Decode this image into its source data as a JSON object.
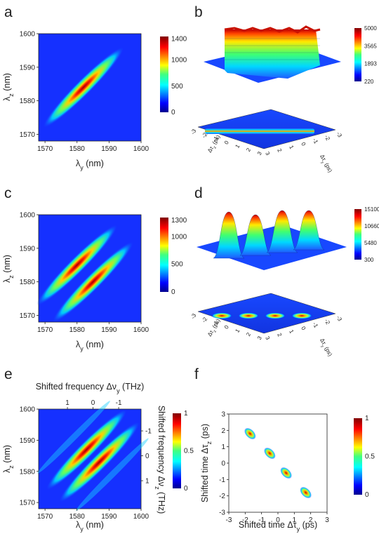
{
  "chart_data": [
    {
      "panel": "a",
      "type": "heatmap",
      "xlabel_main": "λ",
      "xlabel_sub": "y",
      "xlabel_unit": " (nm)",
      "ylabel_main": "λ",
      "ylabel_sub": "z",
      "ylabel_unit": " (nm)",
      "xlim": [
        1568,
        1600
      ],
      "ylim": [
        1568,
        1600
      ],
      "xticks": [
        "1570",
        "1580",
        "1590",
        "1600"
      ],
      "yticks": [
        "1570",
        "1580",
        "1590",
        "1600"
      ],
      "xtick_values": [
        1570,
        1580,
        1590,
        1600
      ],
      "ytick_values": [
        1570,
        1580,
        1590,
        1600
      ],
      "colorbar_ticks": [
        "1400",
        "1000",
        "500",
        "0"
      ],
      "colorbar_values": [
        1400,
        1000,
        500,
        0
      ],
      "colorbar_range": [
        0,
        1450
      ],
      "ellipses": [
        {
          "cx": 1582,
          "cy": 1584,
          "peak": 1400
        }
      ]
    },
    {
      "panel": "b",
      "type": "surface",
      "colorbar_ticks": [
        "5000",
        "3565",
        "1893",
        "220"
      ],
      "x_axis_label": "Δτ",
      "x_axis_sub": "z",
      "x_axis_unit": " (ps)",
      "y_axis_label": "Δτ",
      "y_axis_sub": "y",
      "y_axis_unit": " (ps)",
      "axis_ticks": [
        "-3",
        "-2",
        "-1",
        "0",
        "1",
        "2",
        "3"
      ],
      "peaks": 1
    },
    {
      "panel": "c",
      "type": "heatmap",
      "xlabel_main": "λ",
      "xlabel_sub": "y",
      "xlabel_unit": " (nm)",
      "ylabel_main": "λ",
      "ylabel_sub": "z",
      "ylabel_unit": " (nm)",
      "xlim": [
        1568,
        1600
      ],
      "ylim": [
        1568,
        1600
      ],
      "xticks": [
        "1570",
        "1580",
        "1590",
        "1600"
      ],
      "yticks": [
        "1570",
        "1580",
        "1590",
        "1600"
      ],
      "xtick_values": [
        1570,
        1580,
        1590,
        1600
      ],
      "ytick_values": [
        1570,
        1580,
        1590,
        1600
      ],
      "colorbar_ticks": [
        "1300",
        "1000",
        "500",
        "0"
      ],
      "colorbar_values": [
        1300,
        1000,
        500,
        0
      ],
      "colorbar_range": [
        0,
        1350
      ],
      "ellipses": [
        {
          "cx": 1580,
          "cy": 1585,
          "peak": 1300
        },
        {
          "cx": 1585,
          "cy": 1580,
          "peak": 1300
        }
      ]
    },
    {
      "panel": "d",
      "type": "surface",
      "colorbar_ticks": [
        "15100",
        "10660",
        "5480",
        "300"
      ],
      "x_axis_label": "Δτ",
      "x_axis_sub": "z",
      "x_axis_unit": " (ps)",
      "y_axis_label": "Δτ",
      "y_axis_sub": "y",
      "y_axis_unit": " (ps)",
      "axis_ticks": [
        "-3",
        "-2",
        "-1",
        "0",
        "1",
        "2",
        "3"
      ],
      "peaks": 4
    },
    {
      "panel": "e",
      "type": "heatmap",
      "xlabel_main": "λ",
      "xlabel_sub": "y",
      "xlabel_unit": " (nm)",
      "ylabel_main": "λ",
      "ylabel_sub": "z",
      "ylabel_unit": " (nm)",
      "top_label": "Shifted frequency Δν",
      "top_sub": "y",
      "top_unit": " (THz)",
      "right_label": "Shifted frequency Δν",
      "right_sub": "z",
      "right_unit": " (THz)",
      "top_ticks": [
        "1",
        "0",
        "-1"
      ],
      "top_tick_values": [
        1577,
        1585,
        1593
      ],
      "right_ticks": [
        "-1",
        "0",
        "1"
      ],
      "right_tick_values": [
        1593,
        1585,
        1577
      ],
      "xlim": [
        1568,
        1600
      ],
      "ylim": [
        1568,
        1600
      ],
      "xticks": [
        "1570",
        "1580",
        "1590",
        "1600"
      ],
      "yticks": [
        "1570",
        "1580",
        "1590",
        "1600"
      ],
      "xtick_values": [
        1570,
        1580,
        1590,
        1600
      ],
      "ytick_values": [
        1570,
        1580,
        1590,
        1600
      ],
      "colorbar_ticks": [
        "1",
        "0.5",
        "0"
      ],
      "colorbar_values": [
        1,
        0.5,
        0
      ],
      "colorbar_range": [
        0,
        1
      ],
      "ellipses": [
        {
          "cx": 1583,
          "cy": 1587,
          "peak": 1
        },
        {
          "cx": 1587,
          "cy": 1583,
          "peak": 1
        }
      ]
    },
    {
      "panel": "f",
      "type": "scatter",
      "xlabel_main": "Shifted time Δτ",
      "xlabel_sub": "y",
      "xlabel_unit": " (ps)",
      "ylabel_main": "Shifted time Δτ",
      "ylabel_sub": "z",
      "ylabel_unit": " (ps)",
      "xlim": [
        -3,
        3
      ],
      "ylim": [
        -3,
        3
      ],
      "xticks": [
        "-3",
        "-2",
        "-1",
        "0",
        "1",
        "2",
        "3"
      ],
      "yticks": [
        "-3",
        "-2",
        "-1",
        "0",
        "1",
        "2",
        "3"
      ],
      "xtick_values": [
        -3,
        -2,
        -1,
        0,
        1,
        2,
        3
      ],
      "ytick_values": [
        -3,
        -2,
        -1,
        0,
        1,
        2,
        3
      ],
      "colorbar_ticks": [
        "1",
        "0.5",
        "0"
      ],
      "colorbar_values": [
        1,
        0.5,
        0
      ],
      "colorbar_range": [
        0,
        1
      ],
      "points": [
        {
          "x": -1.7,
          "y": 1.8,
          "value": 1
        },
        {
          "x": -0.5,
          "y": 0.6,
          "value": 1
        },
        {
          "x": 0.5,
          "y": -0.6,
          "value": 1
        },
        {
          "x": 1.7,
          "y": -1.8,
          "value": 1
        }
      ]
    }
  ]
}
